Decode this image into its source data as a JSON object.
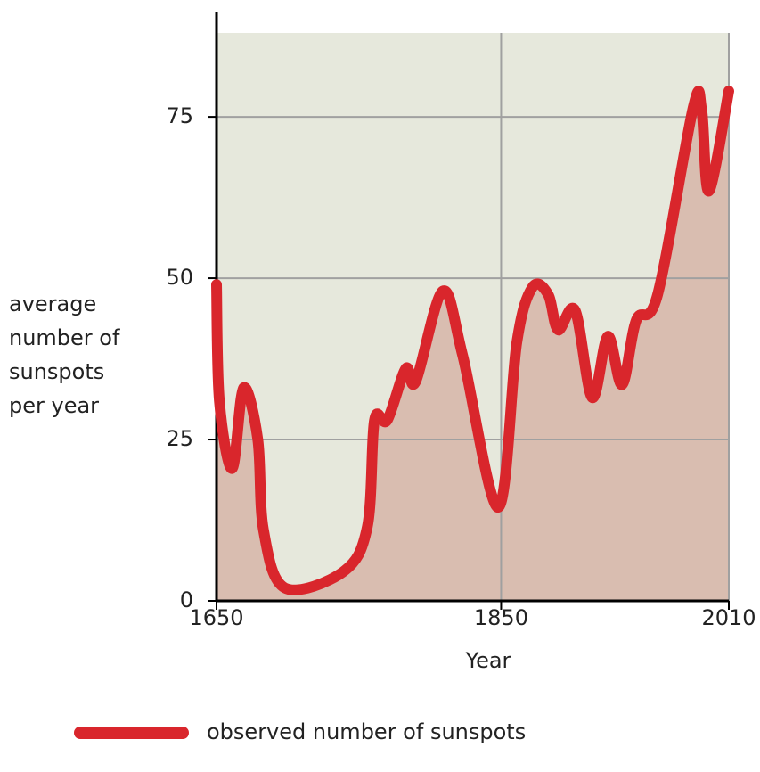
{
  "chart_data": {
    "type": "line",
    "ylabel": "average number of sunspots per year",
    "xlabel": "Year",
    "x": [
      1650,
      1652,
      1661,
      1669,
      1679,
      1683,
      1698,
      1739,
      1756,
      1761,
      1770,
      1783,
      1790,
      1809,
      1823,
      1848,
      1861,
      1872,
      1883,
      1890,
      1902,
      1914,
      1925,
      1935,
      1945,
      1960,
      1985,
      1991,
      1996,
      2010
    ],
    "series": [
      {
        "name": "observed number of sunspots",
        "color": "#d9262c",
        "values": [
          49,
          31,
          20.5,
          33,
          25,
          11,
          2,
          4.5,
          11.5,
          28,
          28,
          36,
          34,
          48,
          38,
          14.5,
          40,
          48.6,
          47.5,
          42,
          45,
          31.5,
          41,
          33.5,
          43.5,
          47.5,
          76.5,
          76,
          63.5,
          79
        ]
      }
    ],
    "xlim": [
      1650,
      2010
    ],
    "xticks": [
      1650,
      1850,
      2010
    ],
    "ylim": [
      0,
      88
    ],
    "yticks": [
      0,
      25,
      50,
      75
    ],
    "grid": true,
    "legend": "bottom"
  }
}
